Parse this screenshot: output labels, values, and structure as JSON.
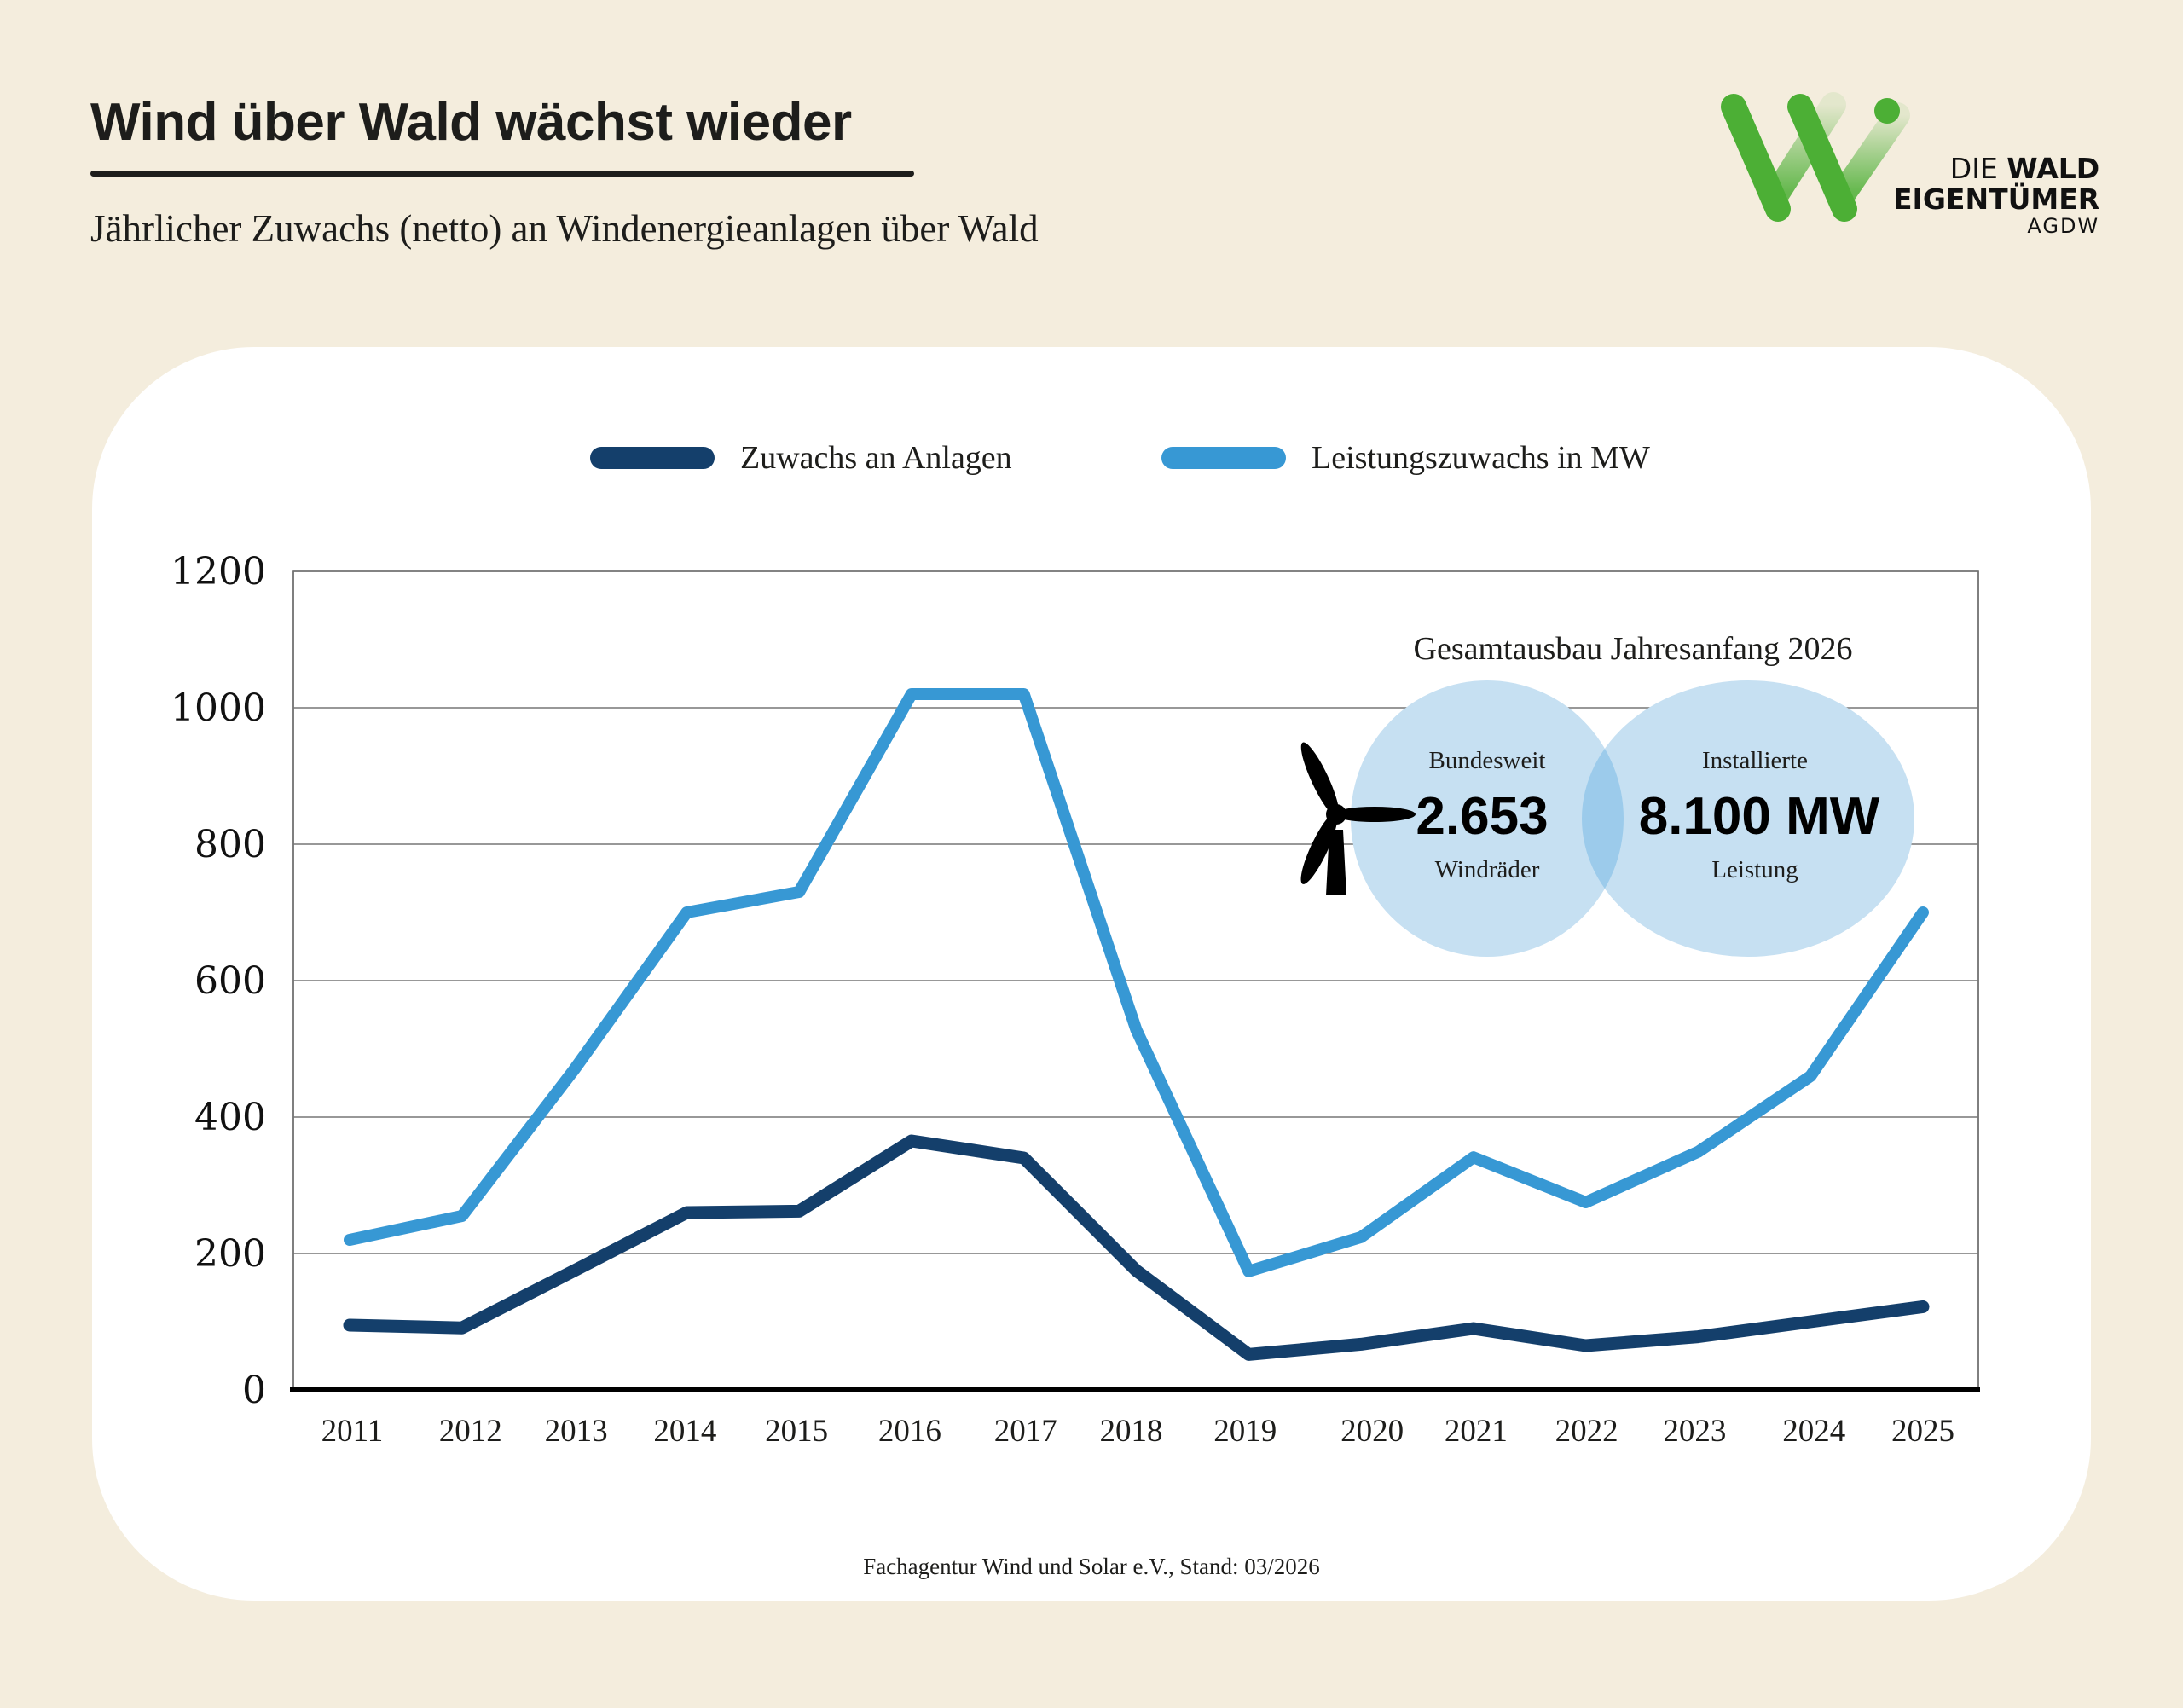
{
  "header": {
    "title": "Wind über Wald wächst wieder",
    "subtitle": "Jährlicher Zuwachs (netto) an Windenergieanlagen über Wald"
  },
  "logo": {
    "line1_light": "DIE ",
    "line1_bold": "WALD",
    "line2": "EIGENTÜMER",
    "line3": "AGDW",
    "color": "#4caf35"
  },
  "colors": {
    "background": "#f4eddd",
    "card": "#ffffff",
    "series_dark": "#143f6b",
    "series_light": "#3798d4",
    "bubble": "#c6e0f2",
    "bubble_overlap": "#9ccbeb"
  },
  "annotation": {
    "title": "Gesamtausbau Jahresanfang 2026",
    "left": {
      "top": "Bundesweit",
      "value": "2.653",
      "bottom": "Windräder"
    },
    "right": {
      "top": "Installierte",
      "value": "8.100 MW",
      "bottom": "Leistung"
    },
    "icon": "wind-turbine-icon"
  },
  "footer": "Fachagentur Wind und Solar e.V., Stand: 03/2026",
  "chart_data": {
    "type": "line",
    "title": "Jährlicher Zuwachs (netto) an Windenergieanlagen über Wald",
    "xlabel": "",
    "ylabel": "",
    "ylim": [
      0,
      1200
    ],
    "yticks": [
      0,
      200,
      400,
      600,
      800,
      1000,
      1200
    ],
    "grid": true,
    "legend_position": "top-center",
    "categories": [
      "2011",
      "2012",
      "2013",
      "2014",
      "2015",
      "2016",
      "2017",
      "2018",
      "2019",
      "2020",
      "2021",
      "2022",
      "2023",
      "2024",
      "2025"
    ],
    "series": [
      {
        "name": "Zuwachs an Anlagen",
        "color": "#143f6b",
        "values": [
          95,
          91,
          175,
          260,
          262,
          365,
          340,
          175,
          52,
          67,
          90,
          65,
          78,
          100,
          122
        ]
      },
      {
        "name": "Leistungszuwachs in MW",
        "color": "#3798d4",
        "values": [
          220,
          255,
          470,
          700,
          730,
          1020,
          1020,
          528,
          174,
          224,
          341,
          275,
          349,
          460,
          700
        ]
      }
    ]
  }
}
